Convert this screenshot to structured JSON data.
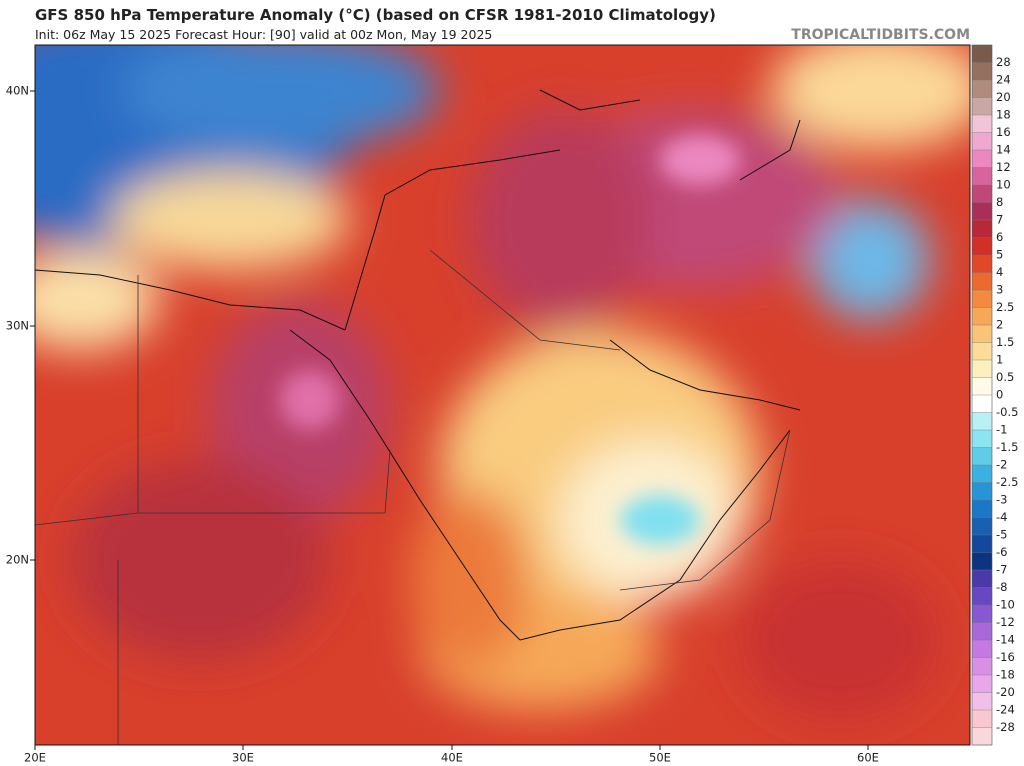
{
  "header": {
    "title": "GFS 850 hPa Temperature Anomaly (°C) (based on CFSR 1981-2010 Climatology)",
    "subtitle": "Init: 06z May 15 2025   Forecast Hour: [90]   valid at 00z Mon, May 19 2025",
    "source": "TROPICALTIDBITS.COM"
  },
  "map": {
    "lat_labels": [
      "40N",
      "30N",
      "20N"
    ],
    "lon_labels": [
      "20E",
      "30E",
      "40E",
      "50E",
      "60E"
    ]
  },
  "colorbar": {
    "levels": [
      28,
      24,
      20,
      18,
      16,
      14,
      12,
      10,
      8,
      7,
      6,
      5,
      4,
      3,
      2.5,
      2,
      1.5,
      1,
      0.5,
      0,
      -0.5,
      -1,
      -1.5,
      -2,
      -2.5,
      -3,
      -4,
      -5,
      -6,
      -7,
      -8,
      -10,
      -12,
      -14,
      -16,
      -18,
      -20,
      -24,
      -28
    ],
    "colors": [
      "#7a5a48",
      "#94705e",
      "#b08c7e",
      "#c9a8a4",
      "#f2c4d8",
      "#f0a8d0",
      "#ec88c0",
      "#d8649e",
      "#c04878",
      "#a83058",
      "#b82838",
      "#d03028",
      "#e04828",
      "#ec6a30",
      "#f28a40",
      "#f6a858",
      "#f9c478",
      "#fbdc98",
      "#fdf0c0",
      "#fffbe8",
      "#ffffff",
      "#b8f0f4",
      "#8ce4f0",
      "#60cce8",
      "#3cb0e0",
      "#2894d4",
      "#1c78c4",
      "#1860b0",
      "#14489c",
      "#0c3480",
      "#4a3aa8",
      "#6848c0",
      "#8858d0",
      "#a868d8",
      "#c478e0",
      "#d890e4",
      "#e8a8e8",
      "#f0c0e8",
      "#f8c8d0",
      "#f8d8dc"
    ]
  }
}
